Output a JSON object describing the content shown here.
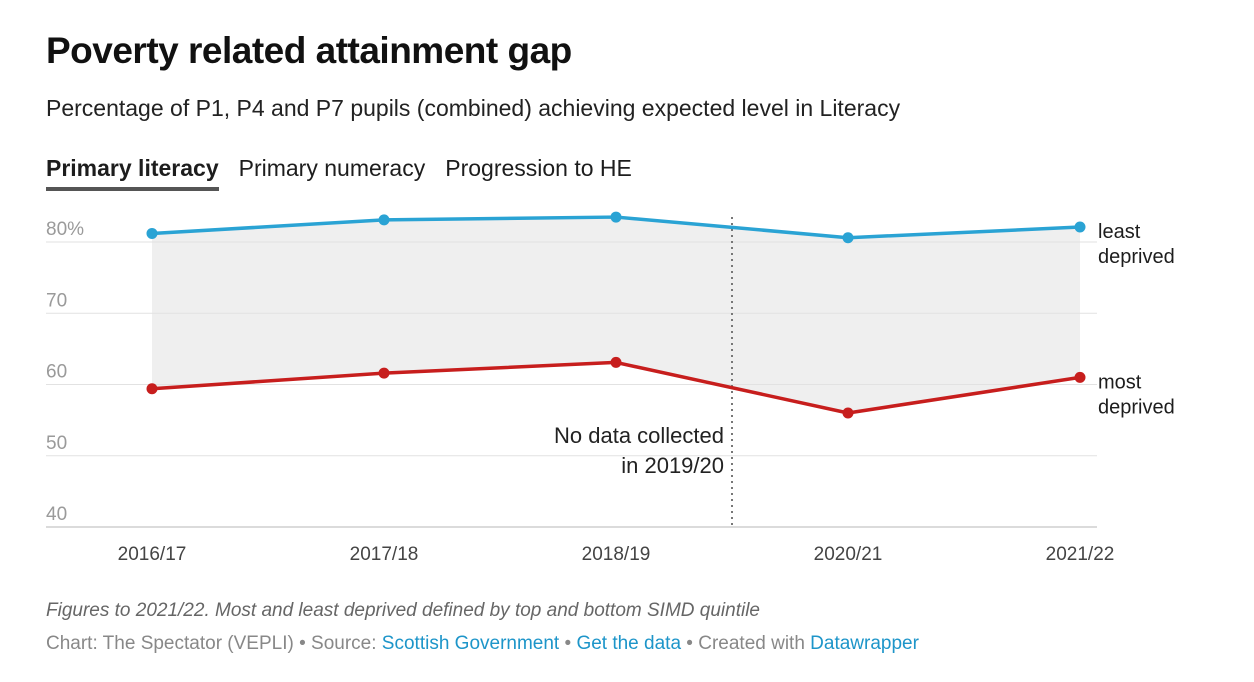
{
  "header": {
    "title": "Poverty related attainment gap",
    "subtitle": "Percentage of P1, P4 and P7 pupils (combined) achieving expected level in Literacy"
  },
  "tabs": [
    {
      "label": "Primary literacy",
      "active": true
    },
    {
      "label": "Primary numeracy",
      "active": false
    },
    {
      "label": "Progression to HE",
      "active": false
    }
  ],
  "chart_data": {
    "type": "line",
    "categories": [
      "2016/17",
      "2017/18",
      "2018/19",
      "2020/21",
      "2021/22"
    ],
    "series": [
      {
        "name": "least deprived",
        "label_lines": [
          "least",
          "deprived"
        ],
        "color": "#2aa3d4",
        "values": [
          81.2,
          83.1,
          83.5,
          80.6,
          82.1
        ]
      },
      {
        "name": "most deprived",
        "label_lines": [
          "most",
          "deprived"
        ],
        "color": "#c71e1d",
        "values": [
          59.4,
          61.6,
          63.1,
          56.0,
          61.0
        ]
      }
    ],
    "y_ticks": [
      "80%",
      "70",
      "60",
      "50",
      "40"
    ],
    "y_tick_values": [
      80,
      70,
      60,
      50,
      40
    ],
    "ylim": [
      40,
      84
    ],
    "gap_fill": true,
    "annotation": {
      "lines": [
        "No data collected",
        "in 2019/20"
      ],
      "after_category": "2018/19"
    },
    "grid": true
  },
  "footer": {
    "notes": "Figures to 2021/22. Most and least deprived defined by top and bottom SIMD quintile",
    "chart_prefix": "Chart: The Spectator (VEPLI) • Source:",
    "source_link": "Scottish Government",
    "sep": "•",
    "data_link": "Get the data",
    "created_prefix": "• Created with",
    "tool_link": "Datawrapper"
  },
  "colors": {
    "gap_fill": "#efefef",
    "grid": "#e2e2e2",
    "axis": "#cfcfcf"
  }
}
